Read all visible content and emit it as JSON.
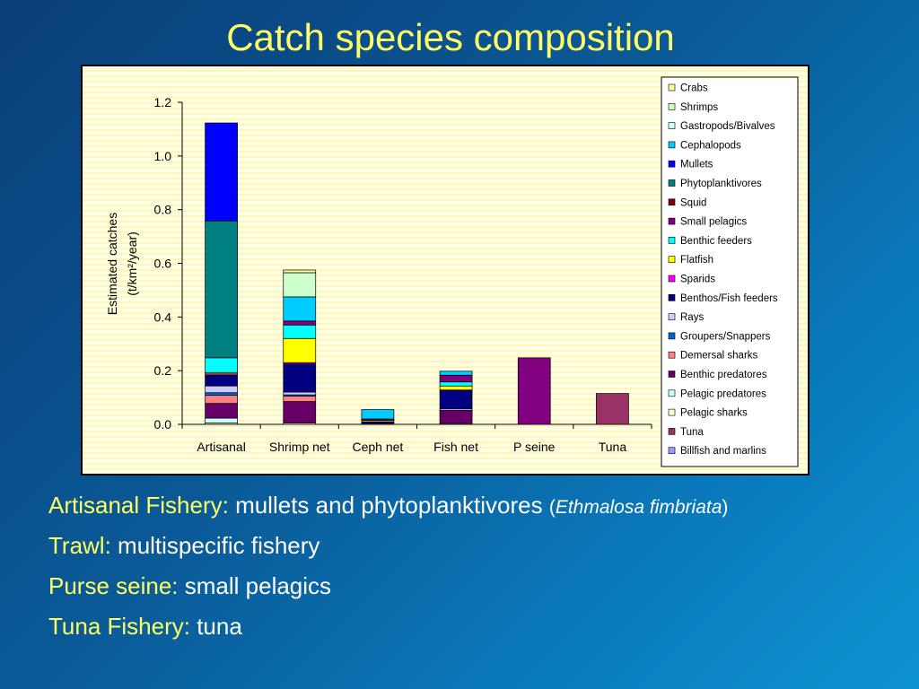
{
  "slide": {
    "title": "Catch species composition"
  },
  "bullets": [
    {
      "label": "Artisanal Fishery:",
      "text": " mullets and phytoplanktivores ",
      "paren_open": "(",
      "sci": "Ethmalosa fimbriata",
      "paren_close": ")"
    },
    {
      "label": "Trawl:",
      "text": " multispecific fishery"
    },
    {
      "label": "Purse seine:",
      "text": " small pelagics"
    },
    {
      "label": "Tuna Fishery:",
      "text": " tuna"
    }
  ],
  "chart_data": {
    "type": "bar",
    "stacked": true,
    "ylabel": "Estimated catches (t/km²/year)",
    "ylabel_lines": [
      "Estimated catches",
      "(t/km²/year)"
    ],
    "ylim": [
      0,
      1.2
    ],
    "yticks": [
      "0.0",
      "0.2",
      "0.4",
      "0.6",
      "0.8",
      "1.0",
      "1.2"
    ],
    "grid": false,
    "legend": "right",
    "categories": [
      "Artisanal",
      "Shrimp net",
      "Ceph net",
      "Fish net",
      "P seine",
      "Tuna"
    ],
    "series": [
      {
        "name": "Billfish and marlins",
        "color": "#9999ff",
        "values": [
          0,
          0,
          0,
          0,
          0,
          0
        ]
      },
      {
        "name": "Tuna",
        "color": "#993366",
        "values": [
          0,
          0,
          0,
          0,
          0,
          0.115
        ]
      },
      {
        "name": "Pelagic sharks",
        "color": "#ffffcc",
        "values": [
          0.005,
          0.005,
          0,
          0,
          0,
          0
        ]
      },
      {
        "name": "Pelagic predatores",
        "color": "#ccffff",
        "values": [
          0.018,
          0,
          0,
          0.003,
          0,
          0
        ]
      },
      {
        "name": "Benthic predatores",
        "color": "#660066",
        "values": [
          0.055,
          0.08,
          0.005,
          0.05,
          0,
          0
        ]
      },
      {
        "name": "Demersal sharks",
        "color": "#ff8080",
        "values": [
          0.03,
          0.02,
          0,
          0,
          0,
          0
        ]
      },
      {
        "name": "Groupers/Snappers",
        "color": "#0066cc",
        "values": [
          0.01,
          0.005,
          0,
          0,
          0,
          0
        ]
      },
      {
        "name": "Rays",
        "color": "#ccccff",
        "values": [
          0.025,
          0.01,
          0,
          0.005,
          0,
          0
        ]
      },
      {
        "name": "Benthos/Fish feeders",
        "color": "#000080",
        "values": [
          0.04,
          0.105,
          0.005,
          0.07,
          0,
          0
        ]
      },
      {
        "name": "Sparids",
        "color": "#ff00ff",
        "values": [
          0.005,
          0.005,
          0,
          0,
          0,
          0
        ]
      },
      {
        "name": "Flatfish",
        "color": "#ffff00",
        "values": [
          0.005,
          0.09,
          0.005,
          0.015,
          0,
          0
        ]
      },
      {
        "name": "Benthic feeders",
        "color": "#00ffff",
        "values": [
          0.055,
          0.05,
          0,
          0.015,
          0,
          0
        ]
      },
      {
        "name": "Small pelagics",
        "color": "#800080",
        "values": [
          0,
          0.015,
          0.005,
          0.025,
          0.248,
          0
        ]
      },
      {
        "name": "Squid",
        "color": "#800000",
        "values": [
          0,
          0,
          0,
          0,
          0,
          0
        ]
      },
      {
        "name": "Phytoplanktivores",
        "color": "#008080",
        "values": [
          0.51,
          0,
          0,
          0,
          0,
          0
        ]
      },
      {
        "name": "Mullets",
        "color": "#0000ff",
        "values": [
          0.365,
          0,
          0,
          0,
          0,
          0
        ]
      },
      {
        "name": "Cephalopods",
        "color": "#00ccff",
        "values": [
          0,
          0.09,
          0.035,
          0.015,
          0,
          0
        ]
      },
      {
        "name": "Gastropods/Bivalves",
        "color": "#ccffff",
        "values": [
          0,
          0,
          0,
          0,
          0,
          0
        ]
      },
      {
        "name": "Shrimps",
        "color": "#ccffcc",
        "values": [
          0,
          0.09,
          0,
          0,
          0,
          0
        ]
      },
      {
        "name": "Crabs",
        "color": "#ffff99",
        "values": [
          0,
          0.01,
          0,
          0,
          0,
          0
        ]
      }
    ]
  }
}
